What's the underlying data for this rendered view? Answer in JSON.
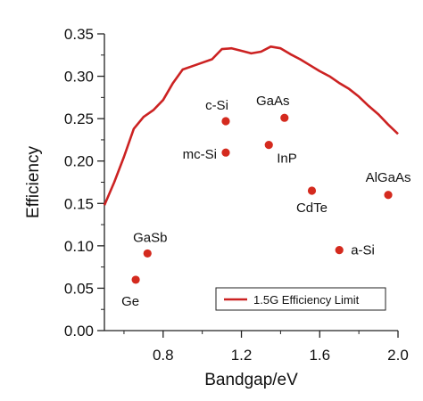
{
  "chart_data": {
    "type": "scatter",
    "xlabel": "Bandgap/eV",
    "ylabel": "Efficiency",
    "xlim": [
      0.5,
      2.0
    ],
    "ylim": [
      0.0,
      0.35
    ],
    "x_ticks": [
      0.8,
      1.2,
      1.6,
      2.0
    ],
    "x_tick_labels": [
      "0.8",
      "1.2",
      "1.6",
      "2.0"
    ],
    "y_ticks": [
      0.0,
      0.05,
      0.1,
      0.15,
      0.2,
      0.25,
      0.3,
      0.35
    ],
    "y_tick_labels": [
      "0.00",
      "0.05",
      "0.10",
      "0.15",
      "0.20",
      "0.25",
      "0.30",
      "0.35"
    ],
    "grid": false,
    "legend_position": "bottom-right",
    "series": [
      {
        "name": "1.5G Efficiency Limit",
        "kind": "line",
        "color": "#cc2222",
        "x": [
          0.5,
          0.55,
          0.6,
          0.65,
          0.7,
          0.75,
          0.8,
          0.85,
          0.9,
          0.95,
          1.0,
          1.05,
          1.1,
          1.15,
          1.2,
          1.25,
          1.3,
          1.35,
          1.4,
          1.45,
          1.5,
          1.55,
          1.6,
          1.65,
          1.7,
          1.75,
          1.8,
          1.85,
          1.9,
          1.95,
          2.0
        ],
        "y": [
          0.148,
          0.175,
          0.205,
          0.238,
          0.252,
          0.26,
          0.272,
          0.292,
          0.308,
          0.312,
          0.316,
          0.32,
          0.332,
          0.333,
          0.33,
          0.327,
          0.329,
          0.335,
          0.333,
          0.326,
          0.32,
          0.313,
          0.306,
          0.3,
          0.292,
          0.285,
          0.276,
          0.265,
          0.255,
          0.243,
          0.232
        ]
      },
      {
        "kind": "scatter",
        "color": "#d42a1e",
        "points": [
          {
            "label": "Ge",
            "x": 0.66,
            "y": 0.06
          },
          {
            "label": "GaSb",
            "x": 0.72,
            "y": 0.091
          },
          {
            "label": "mc-Si",
            "x": 1.12,
            "y": 0.21
          },
          {
            "label": "c-Si",
            "x": 1.12,
            "y": 0.247
          },
          {
            "label": "InP",
            "x": 1.34,
            "y": 0.219
          },
          {
            "label": "GaAs",
            "x": 1.42,
            "y": 0.251
          },
          {
            "label": "CdTe",
            "x": 1.56,
            "y": 0.165
          },
          {
            "label": "a-Si",
            "x": 1.7,
            "y": 0.095
          },
          {
            "label": "AlGaAs",
            "x": 1.95,
            "y": 0.16
          }
        ]
      }
    ]
  }
}
